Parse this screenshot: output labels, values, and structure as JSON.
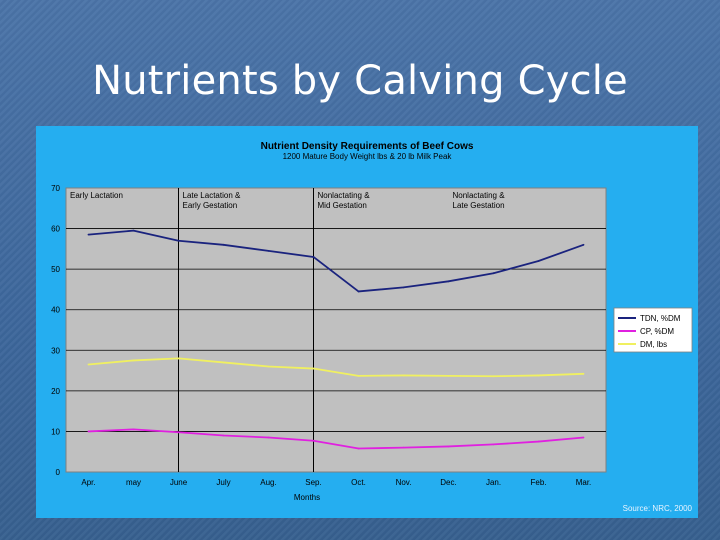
{
  "slide": {
    "title": "Nutrients by Calving Cycle"
  },
  "source": "Source: NRC, 2000",
  "colors": {
    "panel": "#25aef0",
    "plot_area": "#c0c0c0",
    "tdn": "#1a237e",
    "cp": "#e020e0",
    "dm": "#f0f060"
  },
  "chart_data": {
    "type": "line",
    "title": "Nutrient Density Requirements of Beef Cows",
    "subtitle": "1200 Mature Body Weight lbs & 20 lb Milk Peak",
    "xlabel": "Months",
    "ylabel": "",
    "ylim": [
      0,
      70
    ],
    "yticks": [
      0,
      10,
      20,
      30,
      40,
      50,
      60,
      70
    ],
    "categories": [
      "Apr.",
      "may",
      "June",
      "July",
      "Aug.",
      "Sep.",
      "Oct.",
      "Nov.",
      "Dec.",
      "Jan.",
      "Feb.",
      "Mar."
    ],
    "phase_boundaries": [
      2.5,
      5.5
    ],
    "phases": [
      {
        "line1": "Early Lactation",
        "line2": "",
        "start": 0
      },
      {
        "line1": "Late Lactation &",
        "line2": "Early Gestation",
        "start": 2.5
      },
      {
        "line1": "Nonlactating &",
        "line2": "Mid Gestation",
        "start": 5.5
      },
      {
        "line1": "Nonlactating &",
        "line2": "Late Gestation",
        "start": 8.5
      }
    ],
    "series": [
      {
        "name": "TDN, %DM",
        "color": "#1a237e",
        "values": [
          58.5,
          59.5,
          57,
          56,
          54.5,
          53,
          44.5,
          45.5,
          47,
          49,
          52,
          56
        ]
      },
      {
        "name": "CP, %DM",
        "color": "#e020e0",
        "values": [
          10,
          10.5,
          9.8,
          9,
          8.5,
          7.7,
          5.8,
          6,
          6.3,
          6.8,
          7.5,
          8.5
        ]
      },
      {
        "name": "DM, lbs",
        "color": "#f0f060",
        "values": [
          26.5,
          27.5,
          28,
          27,
          26,
          25.5,
          23.7,
          23.8,
          23.7,
          23.6,
          23.8,
          24.2
        ]
      }
    ],
    "legend_position": "right",
    "grid": true
  }
}
